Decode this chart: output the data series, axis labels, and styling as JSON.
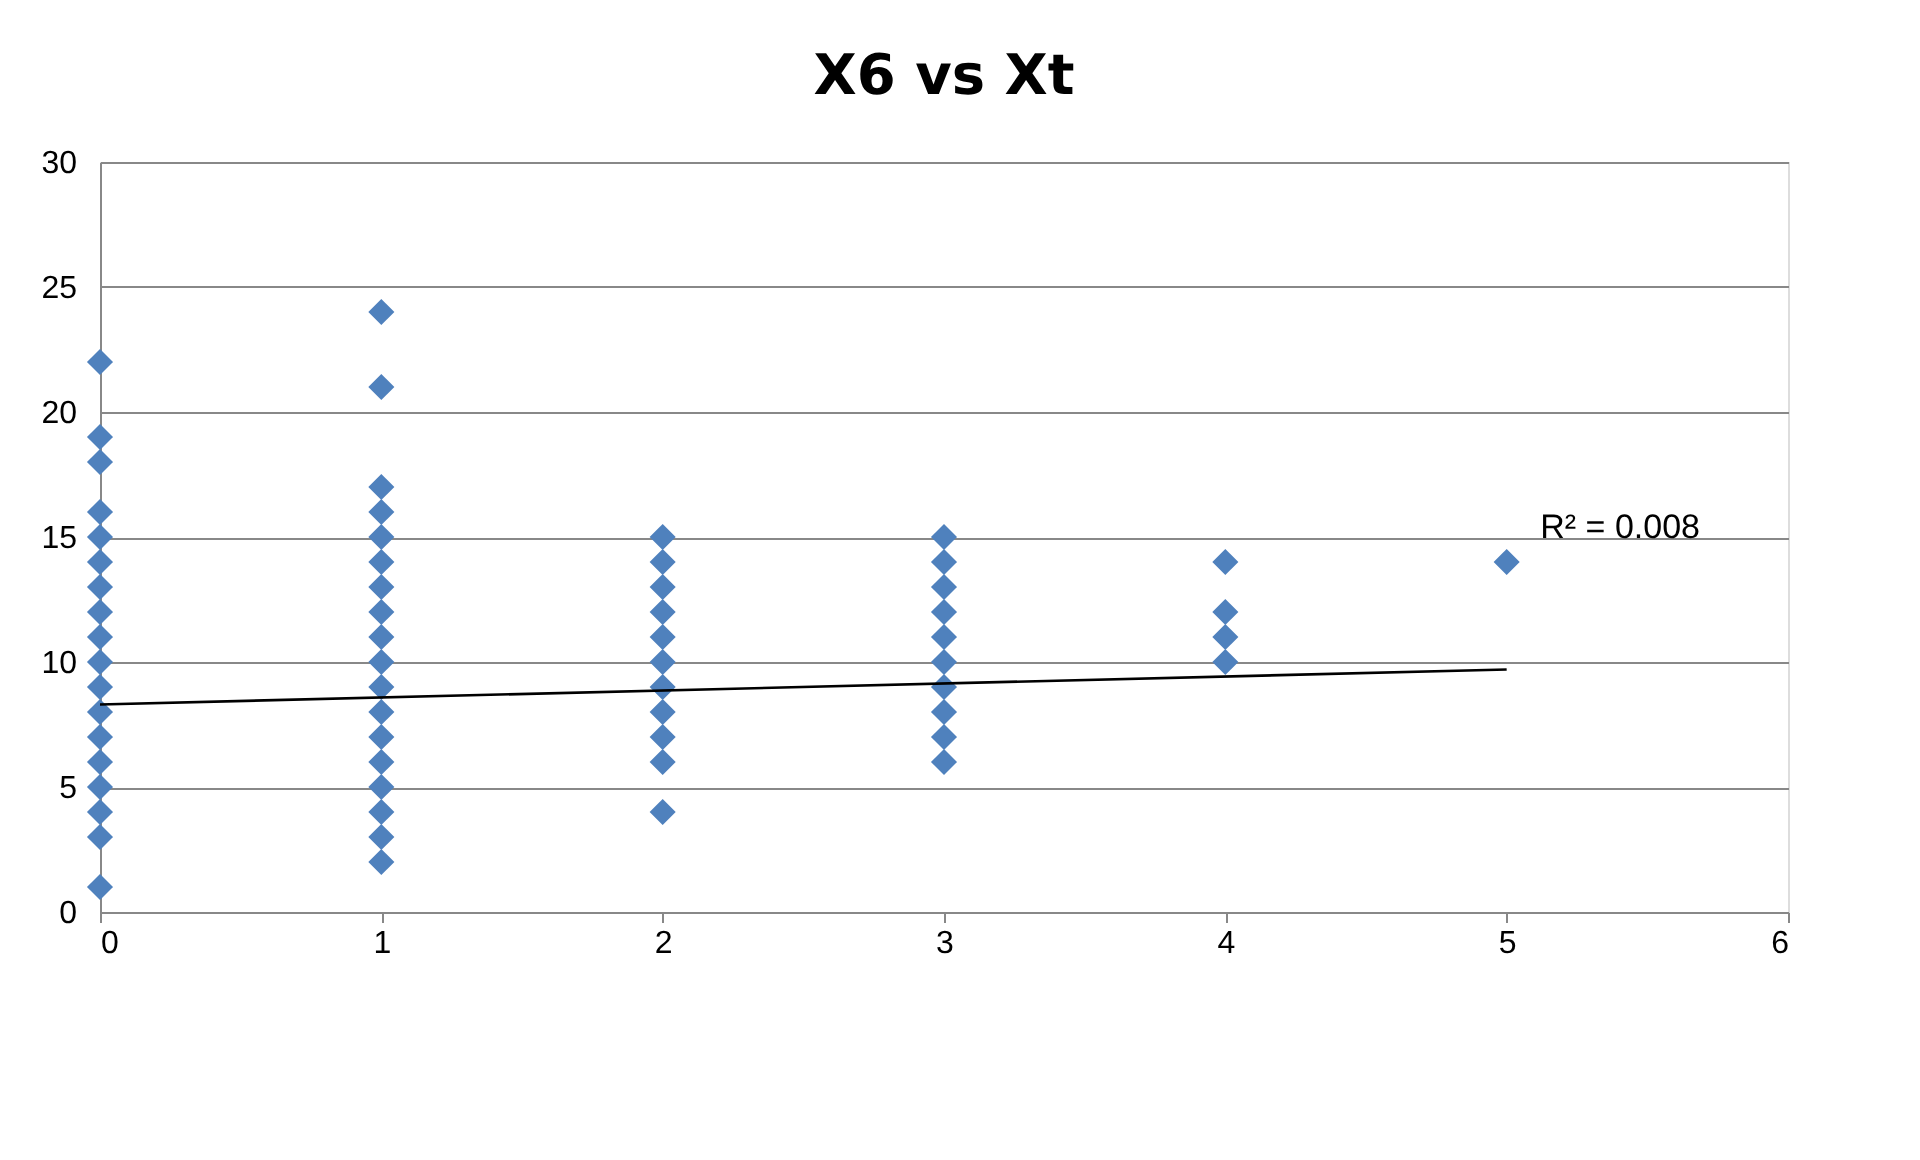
{
  "chart_data": {
    "type": "scatter",
    "title": "X6 vs Xt",
    "xlim": [
      0,
      6
    ],
    "xticks": [
      0,
      1,
      2,
      3,
      4,
      5,
      6
    ],
    "ylim": [
      0,
      30
    ],
    "yticks": [
      0,
      5,
      10,
      15,
      20,
      25,
      30
    ],
    "grid": "y",
    "marker": "diamond",
    "series": [
      {
        "color": "#4f81bd",
        "x": [
          0,
          0,
          0,
          0,
          0,
          0,
          0,
          0,
          0,
          0,
          0,
          0,
          0,
          0,
          0,
          0,
          0,
          0,
          1,
          1,
          1,
          1,
          1,
          1,
          1,
          1,
          1,
          1,
          1,
          1,
          1,
          1,
          1,
          1,
          1,
          1,
          2,
          2,
          2,
          2,
          2,
          2,
          2,
          2,
          2,
          2,
          2,
          3,
          3,
          3,
          3,
          3,
          3,
          3,
          3,
          3,
          3,
          4,
          4,
          4,
          4,
          5
        ],
        "values": [
          1,
          3,
          4,
          5,
          6,
          7,
          8,
          9,
          10,
          11,
          12,
          13,
          14,
          15,
          16,
          18,
          19,
          22,
          2,
          3,
          4,
          5,
          6,
          7,
          8,
          9,
          10,
          11,
          12,
          13,
          14,
          15,
          16,
          17,
          21,
          24,
          4,
          6,
          7,
          8,
          9,
          10,
          11,
          12,
          13,
          14,
          15,
          6,
          7,
          8,
          9,
          10,
          11,
          12,
          13,
          14,
          15,
          10,
          11,
          12,
          14,
          14
        ]
      },
      {
        "type": "line",
        "marker": "none",
        "color": "#000000",
        "x": [
          0,
          5
        ],
        "values": [
          8.3,
          9.7
        ]
      }
    ],
    "annotations": [
      "R² = 0.008"
    ]
  }
}
